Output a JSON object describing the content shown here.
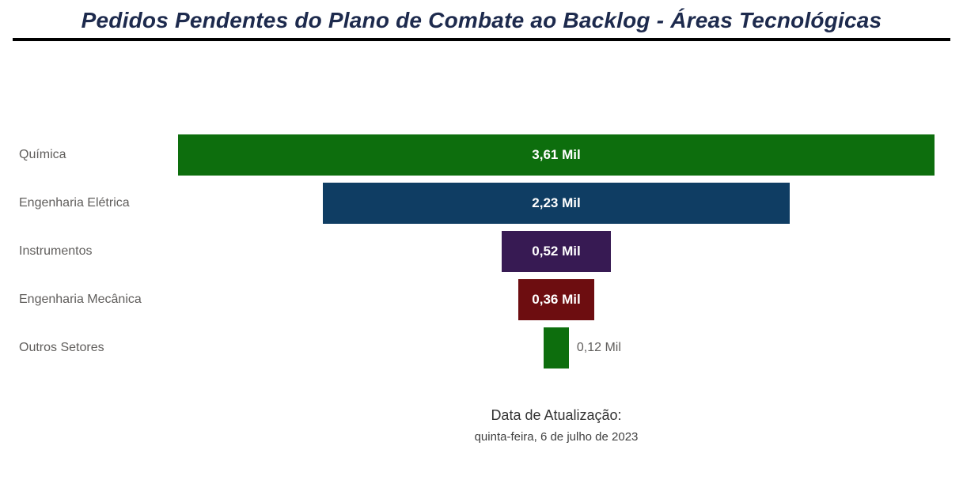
{
  "title": "Pedidos Pendentes do Plano de Combate ao Backlog - Áreas Tecnológicas",
  "chart_data": {
    "type": "funnel",
    "title": "Pedidos Pendentes do Plano de Combate ao Backlog - Áreas Tecnológicas",
    "categories": [
      "Química",
      "Engenharia Elétrica",
      "Instrumentos",
      "Engenharia Mecânica",
      "Outros Setores"
    ],
    "values": [
      3.61,
      2.23,
      0.52,
      0.36,
      0.12
    ],
    "value_labels": [
      "3,61 Mil",
      "2,23 Mil",
      "0,52 Mil",
      "0,36 Mil",
      "0,12 Mil"
    ],
    "colors": [
      "#0d6e0d",
      "#0f3d63",
      "#371a53",
      "#6d0d10",
      "#0d6e0d"
    ],
    "max_value": 3.61,
    "unit": "Mil",
    "legend": "none",
    "orientation": "horizontal-centered"
  },
  "footer": {
    "label": "Data de Atualização:",
    "date": "quinta-feira, 6 de julho de 2023"
  }
}
